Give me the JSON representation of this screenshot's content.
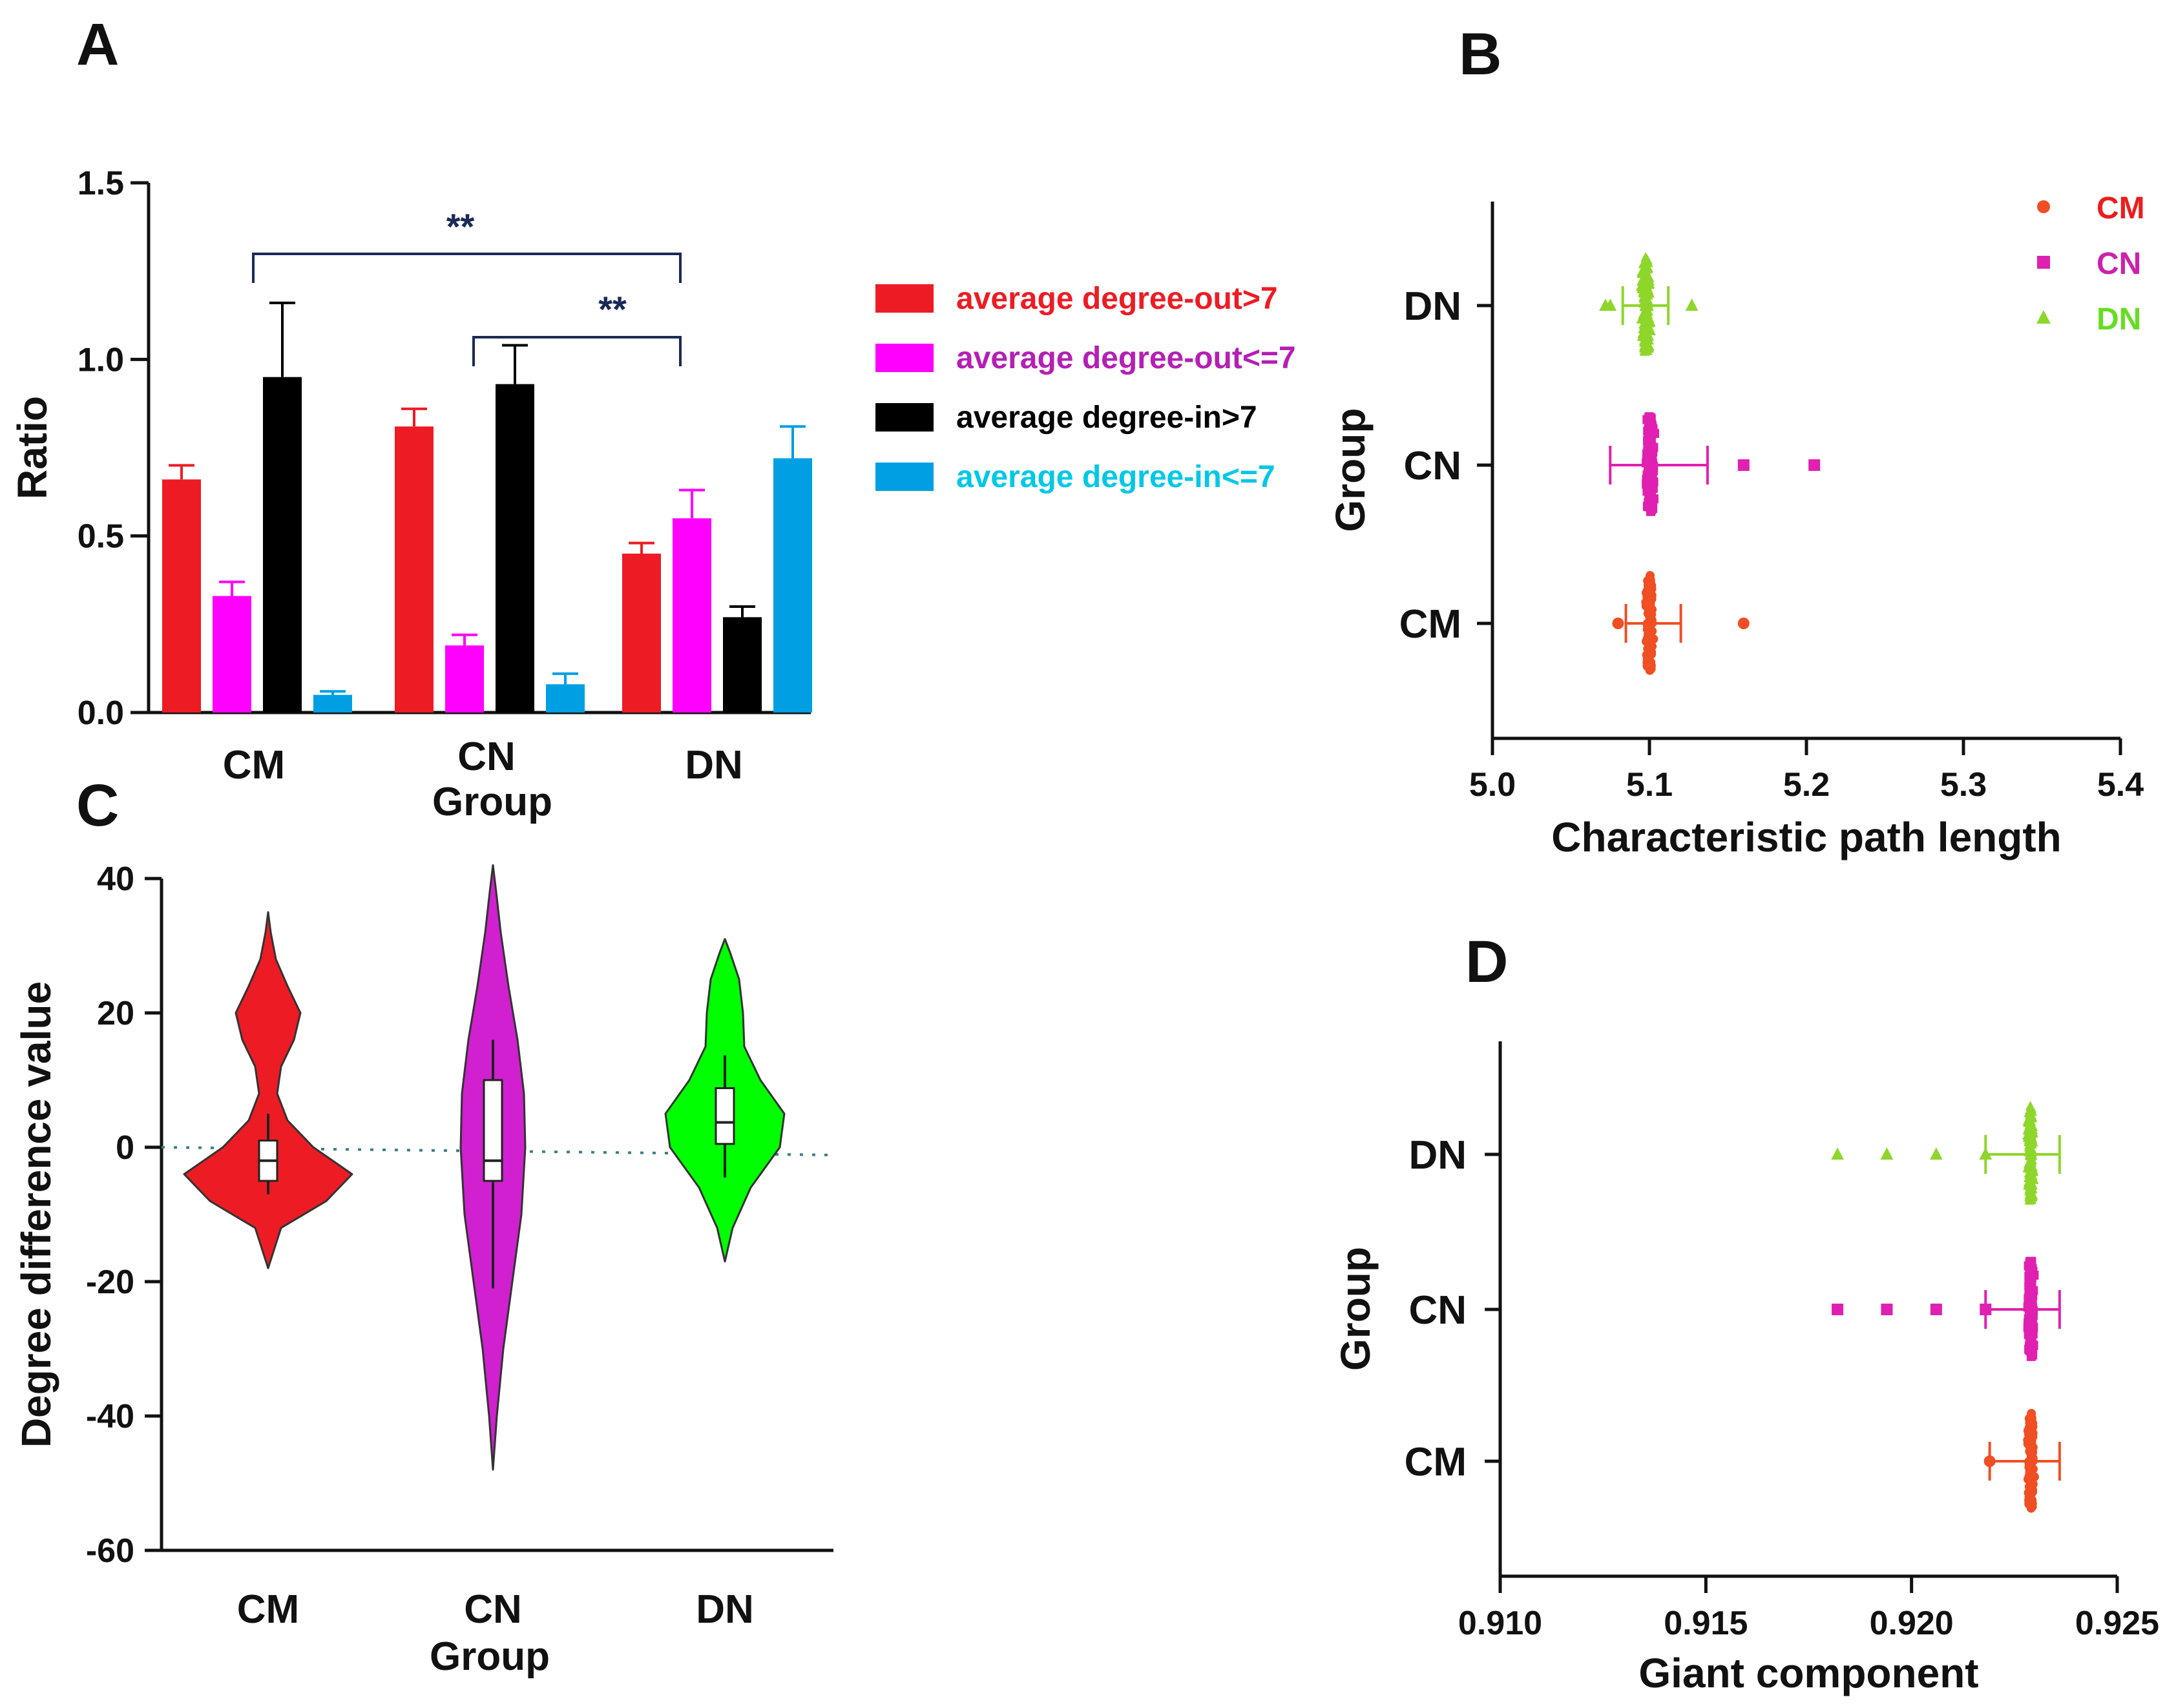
{
  "chart_data": [
    {
      "panel": "A",
      "type": "bar",
      "title": "",
      "xlabel": "Group",
      "ylabel": "Ratio",
      "ylim": [
        0,
        1.5
      ],
      "yticks": [
        "0.0",
        "0.5",
        "1.0",
        "1.5"
      ],
      "categories": [
        "CM",
        "CN",
        "DN"
      ],
      "series": [
        {
          "name": "average degree-out>7",
          "color": "#ed1c24",
          "label_color": "#ed1c24",
          "values": [
            0.66,
            0.81,
            0.45
          ],
          "errors": [
            0.04,
            0.05,
            0.03
          ]
        },
        {
          "name": "average degree-out<=7",
          "color": "#ff00ff",
          "label_color": "#b41fb4",
          "values": [
            0.33,
            0.19,
            0.55
          ],
          "errors": [
            0.04,
            0.03,
            0.08
          ]
        },
        {
          "name": "average degree-in>7",
          "color": "#000000",
          "label_color": "#000000",
          "values": [
            0.95,
            0.93,
            0.27
          ],
          "errors": [
            0.21,
            0.11,
            0.03
          ]
        },
        {
          "name": "average degree-in<=7",
          "color": "#009fe3",
          "label_color": "#00c8e6",
          "values": [
            0.05,
            0.08,
            0.72
          ],
          "errors": [
            0.01,
            0.03,
            0.09
          ]
        }
      ],
      "annotations": [
        {
          "text": "**",
          "from": "CM",
          "to": "DN"
        },
        {
          "text": "**",
          "from": "CN",
          "to": "DN"
        }
      ],
      "legend": "right"
    },
    {
      "panel": "B",
      "type": "scatter",
      "xlabel": "Characteristic path length",
      "ylabel": "Group",
      "xlim": [
        5.0,
        5.4
      ],
      "xticks": [
        "5.0",
        "5.1",
        "5.2",
        "5.3",
        "5.4"
      ],
      "categories": [
        "DN",
        "CN",
        "CM"
      ],
      "series": [
        {
          "name": "CM",
          "color": "#f04e23",
          "marker": "circle",
          "center": 5.1,
          "q1": 5.097,
          "q3": 5.103,
          "whisker_low": 5.085,
          "whisker_high": 5.12,
          "outliers": [
            5.08,
            5.16
          ]
        },
        {
          "name": "CN",
          "color": "#e020b0",
          "marker": "square",
          "center": 5.1,
          "q1": 5.097,
          "q3": 5.104,
          "whisker_low": 5.075,
          "whisker_high": 5.137,
          "outliers": [
            5.16,
            5.205
          ]
        },
        {
          "name": "DN",
          "color": "#8ed62a",
          "marker": "triangle",
          "center": 5.098,
          "q1": 5.094,
          "q3": 5.102,
          "whisker_low": 5.083,
          "whisker_high": 5.112,
          "outliers": [
            5.072,
            5.075,
            5.127
          ]
        }
      ],
      "legend": "top-right",
      "legend_items": [
        {
          "name": "CM",
          "color": "#ee1c1c"
        },
        {
          "name": "CN",
          "color": "#cc22aa"
        },
        {
          "name": "DN",
          "color": "#66dd22"
        }
      ]
    },
    {
      "panel": "C",
      "type": "violin",
      "xlabel": "Group",
      "ylabel": "Degree difference value",
      "ylim": [
        -60,
        40
      ],
      "yticks": [
        "40",
        "20",
        "0",
        "-20",
        "-40",
        "-60"
      ],
      "categories": [
        "CM",
        "CN",
        "DN"
      ],
      "reference_line": 0,
      "series": [
        {
          "name": "CM",
          "color": "#ed1c24",
          "min": -18,
          "max": 35,
          "q1": -5,
          "median": -2,
          "q3": 1,
          "whisker_low": -7,
          "whisker_high": 5
        },
        {
          "name": "CN",
          "color": "#d020d0",
          "min": -48,
          "max": 42,
          "q1": -5,
          "median": -2,
          "q3": 10,
          "whisker_low": -21,
          "whisker_high": 16
        },
        {
          "name": "DN",
          "color": "#00ff00",
          "min": -17,
          "max": 31,
          "q1": 0.5,
          "median": 3.7,
          "q3": 8.8,
          "whisker_low": -4.5,
          "whisker_high": 13.7
        }
      ]
    },
    {
      "panel": "D",
      "type": "scatter",
      "xlabel": "Giant component",
      "ylabel": "Group",
      "xlim": [
        0.91,
        0.925
      ],
      "xticks": [
        "0.910",
        "0.915",
        "0.920",
        "0.925"
      ],
      "categories": [
        "DN",
        "CN",
        "CM"
      ],
      "series": [
        {
          "name": "CM",
          "color": "#f04e23",
          "marker": "circle",
          "center": 0.9229,
          "q1": 0.9228,
          "q3": 0.923,
          "whisker_low": 0.9219,
          "whisker_high": 0.9236,
          "outliers": [
            0.9219
          ]
        },
        {
          "name": "CN",
          "color": "#e020b0",
          "marker": "square",
          "center": 0.9229,
          "q1": 0.9228,
          "q3": 0.923,
          "whisker_low": 0.9218,
          "whisker_high": 0.9236,
          "outliers": [
            0.9182,
            0.9194,
            0.9206,
            0.9218
          ]
        },
        {
          "name": "DN",
          "color": "#8ed62a",
          "marker": "triangle",
          "center": 0.9229,
          "q1": 0.9228,
          "q3": 0.923,
          "whisker_low": 0.9218,
          "whisker_high": 0.9236,
          "outliers": [
            0.9182,
            0.9194,
            0.9206,
            0.9218
          ]
        }
      ]
    }
  ]
}
